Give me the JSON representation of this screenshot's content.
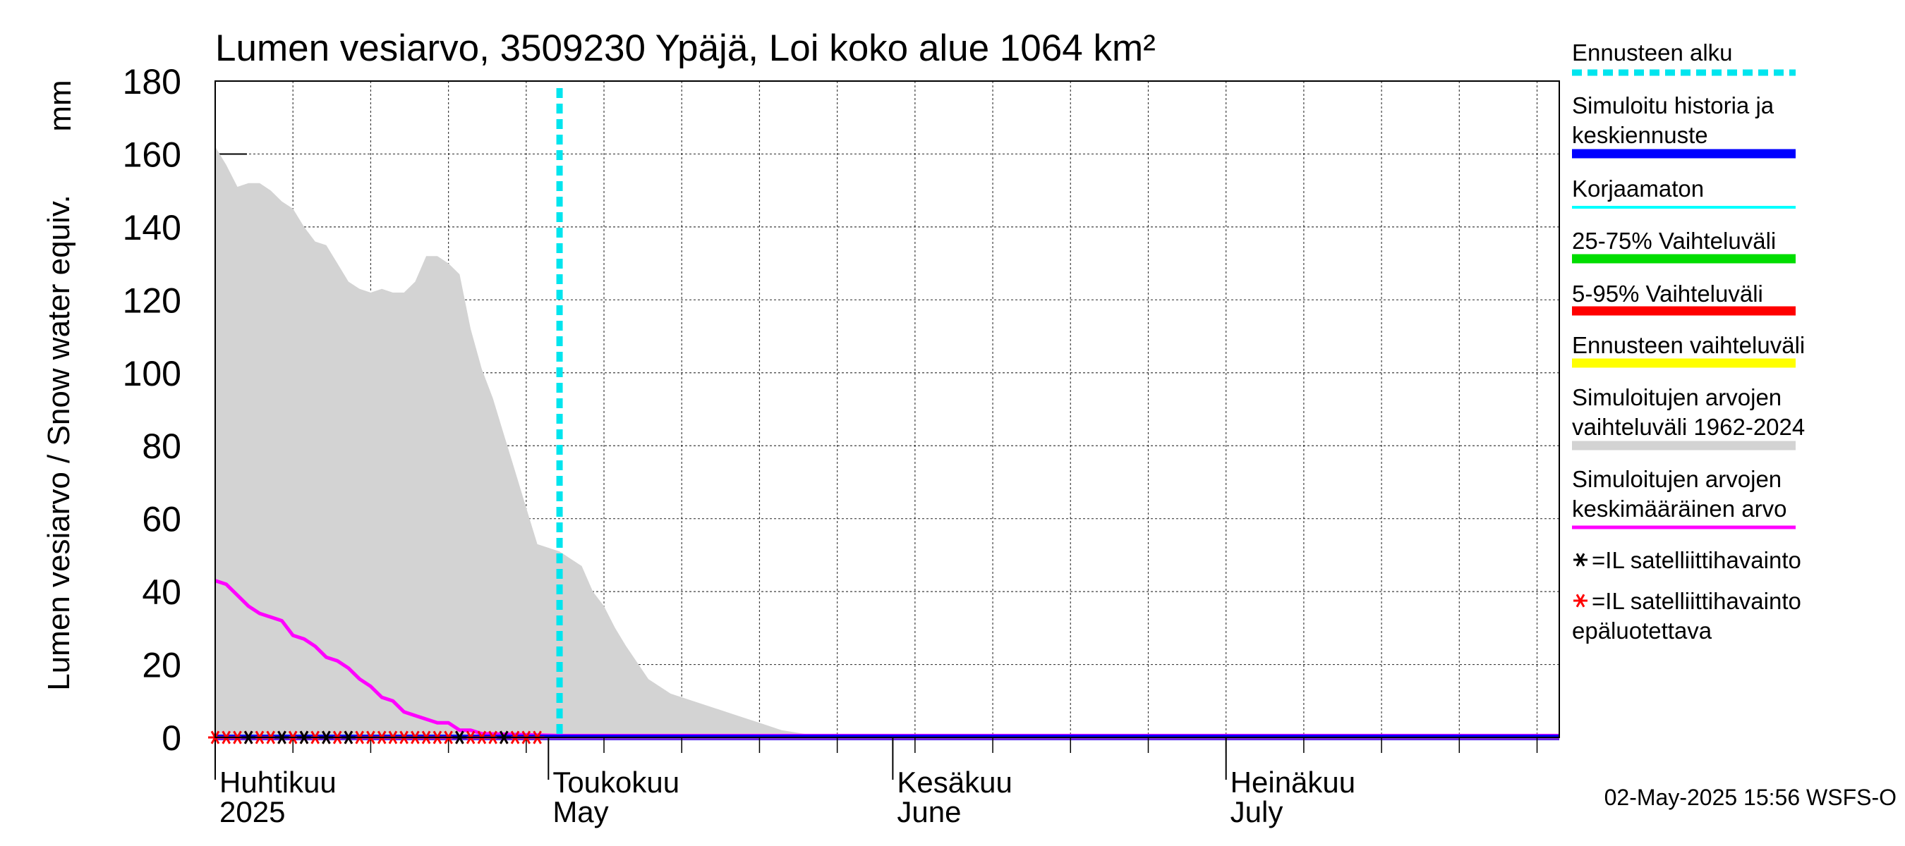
{
  "chart_data": {
    "type": "line",
    "title": "Lumen vesiarvo, 3509230 Ypäjä, Loi koko alue 1064 km²",
    "ylabel": "Lumen vesiarvo / Snow water equiv.",
    "yunit": "mm",
    "ylim": [
      0,
      180
    ],
    "yticks": [
      0,
      20,
      40,
      60,
      80,
      100,
      120,
      140,
      160,
      180
    ],
    "xlim": [
      "2025-04-01",
      "2025-07-31"
    ],
    "month_labels": [
      {
        "date": "2025-04-01",
        "line1": "Huhtikuu",
        "line2": "2025"
      },
      {
        "date": "2025-05-01",
        "line1": "Toukokuu",
        "line2": "May"
      },
      {
        "date": "2025-06-01",
        "line1": "Kesäkuu",
        "line2": "June"
      },
      {
        "date": "2025-07-01",
        "line1": "Heinäkuu",
        "line2": "July"
      }
    ],
    "forecast_start": "2025-05-02",
    "grid": true,
    "legend_position": "right",
    "series": [
      {
        "name": "Simuloitujen arvojen vaihteluväli 1962-2024",
        "kind": "band",
        "color": "#d3d3d3",
        "x": [
          "2025-04-01",
          "2025-04-02",
          "2025-04-03",
          "2025-04-04",
          "2025-04-05",
          "2025-04-06",
          "2025-04-07",
          "2025-04-08",
          "2025-04-09",
          "2025-04-10",
          "2025-04-11",
          "2025-04-12",
          "2025-04-13",
          "2025-04-14",
          "2025-04-15",
          "2025-04-16",
          "2025-04-17",
          "2025-04-18",
          "2025-04-19",
          "2025-04-20",
          "2025-04-21",
          "2025-04-22",
          "2025-04-23",
          "2025-04-24",
          "2025-04-25",
          "2025-04-26",
          "2025-04-27",
          "2025-04-28",
          "2025-04-29",
          "2025-04-30",
          "2025-05-01",
          "2025-05-02",
          "2025-05-03",
          "2025-05-04",
          "2025-05-05",
          "2025-05-06",
          "2025-05-07",
          "2025-05-08",
          "2025-05-10",
          "2025-05-12",
          "2025-05-14",
          "2025-05-16",
          "2025-05-18",
          "2025-05-20",
          "2025-05-22",
          "2025-05-24",
          "2025-05-26",
          "2025-07-31"
        ],
        "upper": [
          162,
          157,
          151,
          152,
          152,
          150,
          147,
          145,
          140,
          136,
          135,
          130,
          125,
          123,
          122,
          123,
          122,
          122,
          125,
          132,
          132,
          130,
          127,
          112,
          101,
          93,
          83,
          73,
          63,
          53,
          52,
          51,
          49,
          47,
          40,
          36,
          30,
          25,
          16,
          12,
          10,
          8,
          6,
          4,
          2,
          1,
          0,
          0
        ],
        "lower": [
          0,
          0,
          0,
          0,
          0,
          0,
          0,
          0,
          0,
          0,
          0,
          0,
          0,
          0,
          0,
          0,
          0,
          0,
          0,
          0,
          0,
          0,
          0,
          0,
          0,
          0,
          0,
          0,
          0,
          0,
          0,
          0,
          0,
          0,
          0,
          0,
          0,
          0,
          0,
          0,
          0,
          0,
          0,
          0,
          0,
          0,
          0,
          0
        ]
      },
      {
        "name": "Simuloitujen arvojen keskimääräinen arvo",
        "kind": "line",
        "color": "#ff00ff",
        "x": [
          "2025-04-01",
          "2025-04-02",
          "2025-04-03",
          "2025-04-04",
          "2025-04-05",
          "2025-04-06",
          "2025-04-07",
          "2025-04-08",
          "2025-04-09",
          "2025-04-10",
          "2025-04-11",
          "2025-04-12",
          "2025-04-13",
          "2025-04-14",
          "2025-04-15",
          "2025-04-16",
          "2025-04-17",
          "2025-04-18",
          "2025-04-19",
          "2025-04-20",
          "2025-04-21",
          "2025-04-22",
          "2025-04-23",
          "2025-04-24",
          "2025-04-25",
          "2025-05-02",
          "2025-07-31"
        ],
        "y": [
          43,
          42,
          39,
          36,
          34,
          33,
          32,
          28,
          27,
          25,
          22,
          21,
          19,
          16,
          14,
          11,
          10,
          7,
          6,
          5,
          4,
          4,
          2,
          2,
          1,
          0.5,
          0.5
        ]
      },
      {
        "name": "Simuloitu historia ja keskiennuste",
        "kind": "line",
        "color": "#0000ff",
        "x": [
          "2025-04-01",
          "2025-07-31"
        ],
        "y": [
          0,
          0
        ]
      }
    ],
    "observations_reliable": {
      "name": "=IL satelliittihavainto",
      "color": "#000000",
      "x": [
        "2025-04-04",
        "2025-04-07",
        "2025-04-09",
        "2025-04-11",
        "2025-04-13",
        "2025-04-23",
        "2025-04-27"
      ],
      "y": [
        0,
        0,
        0,
        0,
        0,
        0,
        0
      ]
    },
    "observations_unreliable": {
      "name": "=IL satelliittihavainto epäluotettava",
      "color": "#ff0000",
      "x": [
        "2025-04-01",
        "2025-04-02",
        "2025-04-03",
        "2025-04-04",
        "2025-04-05",
        "2025-04-06",
        "2025-04-07",
        "2025-04-08",
        "2025-04-09",
        "2025-04-10",
        "2025-04-11",
        "2025-04-12",
        "2025-04-13",
        "2025-04-14",
        "2025-04-15",
        "2025-04-16",
        "2025-04-17",
        "2025-04-18",
        "2025-04-19",
        "2025-04-20",
        "2025-04-21",
        "2025-04-22",
        "2025-04-23",
        "2025-04-24",
        "2025-04-25",
        "2025-04-26",
        "2025-04-27",
        "2025-04-28",
        "2025-04-29",
        "2025-04-30"
      ],
      "y": [
        0,
        0,
        0,
        0,
        0,
        0,
        0,
        0,
        0,
        0,
        0,
        0,
        0,
        0,
        0,
        0,
        0,
        0,
        0,
        0,
        0,
        0,
        0,
        0,
        0,
        0,
        0,
        0,
        0,
        0
      ]
    }
  },
  "legend": [
    {
      "lines": [
        "Ennusteen alku"
      ],
      "color": "#00e5ee",
      "style": "dash"
    },
    {
      "lines": [
        "Simuloitu historia ja",
        "keskiennuste"
      ],
      "color": "#0000ff",
      "style": "thick"
    },
    {
      "lines": [
        "Korjaamaton"
      ],
      "color": "#00ffff",
      "style": "thin"
    },
    {
      "lines": [
        "25-75% Vaihteluväli"
      ],
      "color": "#00dd00",
      "style": "thick"
    },
    {
      "lines": [
        "5-95% Vaihteluväli"
      ],
      "color": "#ff0000",
      "style": "thick"
    },
    {
      "lines": [
        "Ennusteen vaihteluväli"
      ],
      "color": "#ffff00",
      "style": "thick"
    },
    {
      "lines": [
        "Simuloitujen arvojen",
        "vaihteluväli 1962-2024"
      ],
      "color": "#d3d3d3",
      "style": "thick"
    },
    {
      "lines": [
        "Simuloitujen arvojen",
        "keskimääräinen arvo"
      ],
      "color": "#ff00ff",
      "style": "medium"
    },
    {
      "lines": [
        "=IL satelliittihavainto"
      ],
      "color": "#000000",
      "style": "marker"
    },
    {
      "lines": [
        "=IL satelliittihavainto",
        "epäluotettava"
      ],
      "color": "#ff0000",
      "style": "marker"
    }
  ],
  "footer": "02-May-2025 15:56 WSFS-O"
}
